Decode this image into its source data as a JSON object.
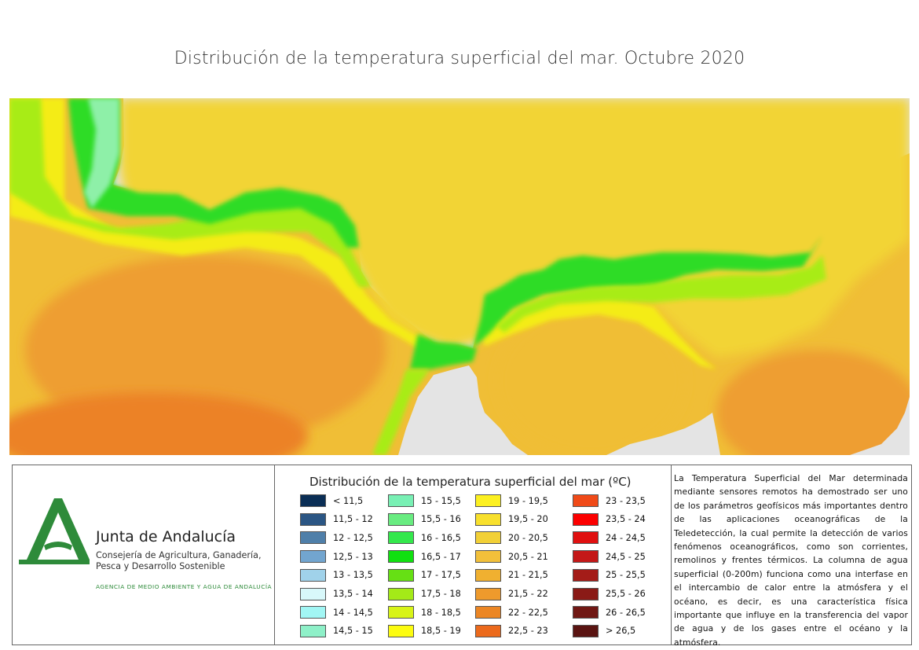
{
  "title": "Distribución de la temperatura superficial del mar. Octubre 2020",
  "map": {
    "land_color": "#e4e4e4",
    "sea_palette": {
      "light_green": "#8ef0a8",
      "green": "#2fdc28",
      "lime": "#a8ec18",
      "yellow": "#f4ec14",
      "gold": "#f2d436",
      "amber": "#f0be36",
      "orange": "#ee9e30",
      "dark_orange": "#ec8228"
    }
  },
  "organization": {
    "name": "Junta de Andalucía",
    "department_lines": [
      "Consejería de Agricultura, Ganadería,",
      "Pesca y Desarrollo Sostenible"
    ],
    "agency": "AGENCIA DE MEDIO AMBIENTE Y AGUA DE ANDALUCÍA",
    "logo_color": "#2e8b3a",
    "logo_icon": "junta-andalucia-logo"
  },
  "legend": {
    "title": "Distribución de la temperatura superficial del mar (ºC)",
    "columns": [
      [
        {
          "label": "< 11,5",
          "color": "#0a2e55"
        },
        {
          "label": "11,5 - 12",
          "color": "#2b5684"
        },
        {
          "label": "12 - 12,5",
          "color": "#4f7fa9"
        },
        {
          "label": "12,5 - 13",
          "color": "#72a5cf"
        },
        {
          "label": "13 - 13,5",
          "color": "#a0d2ea"
        },
        {
          "label": "13,5 - 14",
          "color": "#d8f8fa"
        },
        {
          "label": "14 - 14,5",
          "color": "#a2f6f4"
        },
        {
          "label": "14,5 - 15",
          "color": "#8ef0c8"
        }
      ],
      [
        {
          "label": "15 - 15,5",
          "color": "#78f0b4"
        },
        {
          "label": "15,5 - 16",
          "color": "#68ec80"
        },
        {
          "label": "16 - 16,5",
          "color": "#34e84c"
        },
        {
          "label": "16,5 - 17",
          "color": "#10e010"
        },
        {
          "label": "17 - 17,5",
          "color": "#66e014"
        },
        {
          "label": "17,5 - 18",
          "color": "#a4ea18"
        },
        {
          "label": "18 - 18,5",
          "color": "#d8f418"
        },
        {
          "label": "18,5 - 19",
          "color": "#fcfc10"
        }
      ],
      [
        {
          "label": "19 - 19,5",
          "color": "#fcf020"
        },
        {
          "label": "19,5 - 20",
          "color": "#f8e02c"
        },
        {
          "label": "20 - 20,5",
          "color": "#f2d036"
        },
        {
          "label": "20,5 - 21",
          "color": "#f2c03a"
        },
        {
          "label": "21 - 21,5",
          "color": "#f0b030"
        },
        {
          "label": "21,5 - 22",
          "color": "#ee9a2c"
        },
        {
          "label": "22 - 22,5",
          "color": "#ec8624"
        },
        {
          "label": "22,5 - 23",
          "color": "#ec6a1c"
        }
      ],
      [
        {
          "label": "23 - 23,5",
          "color": "#f04a18"
        },
        {
          "label": "23,5 - 24",
          "color": "#fc0000"
        },
        {
          "label": "24 - 24,5",
          "color": "#e01010"
        },
        {
          "label": "24,5 - 25",
          "color": "#c41818"
        },
        {
          "label": "25 - 25,5",
          "color": "#a41c18"
        },
        {
          "label": "25,5 - 26",
          "color": "#8a1a16"
        },
        {
          "label": "26 - 26,5",
          "color": "#701814"
        },
        {
          "label": "> 26,5",
          "color": "#5a1412"
        }
      ]
    ]
  },
  "description": "La Temperatura Superficial del Mar determinada mediante sensores remotos ha demostrado ser uno de los parámetros geofísicos más importantes dentro de las aplicaciones oceanográficas de la Teledetección, la cual permite la detección de varios fenómenos oceanográficos, como son corrientes, remolinos y frentes térmicos. La columna de agua superficial (0-200m) funciona como una interfase en el intercambio de calor entre la atmósfera y el océano, es decir, es una característica física importante que influye en la transferencia del vapor de agua y de los gases entre el océano y la atmósfera."
}
